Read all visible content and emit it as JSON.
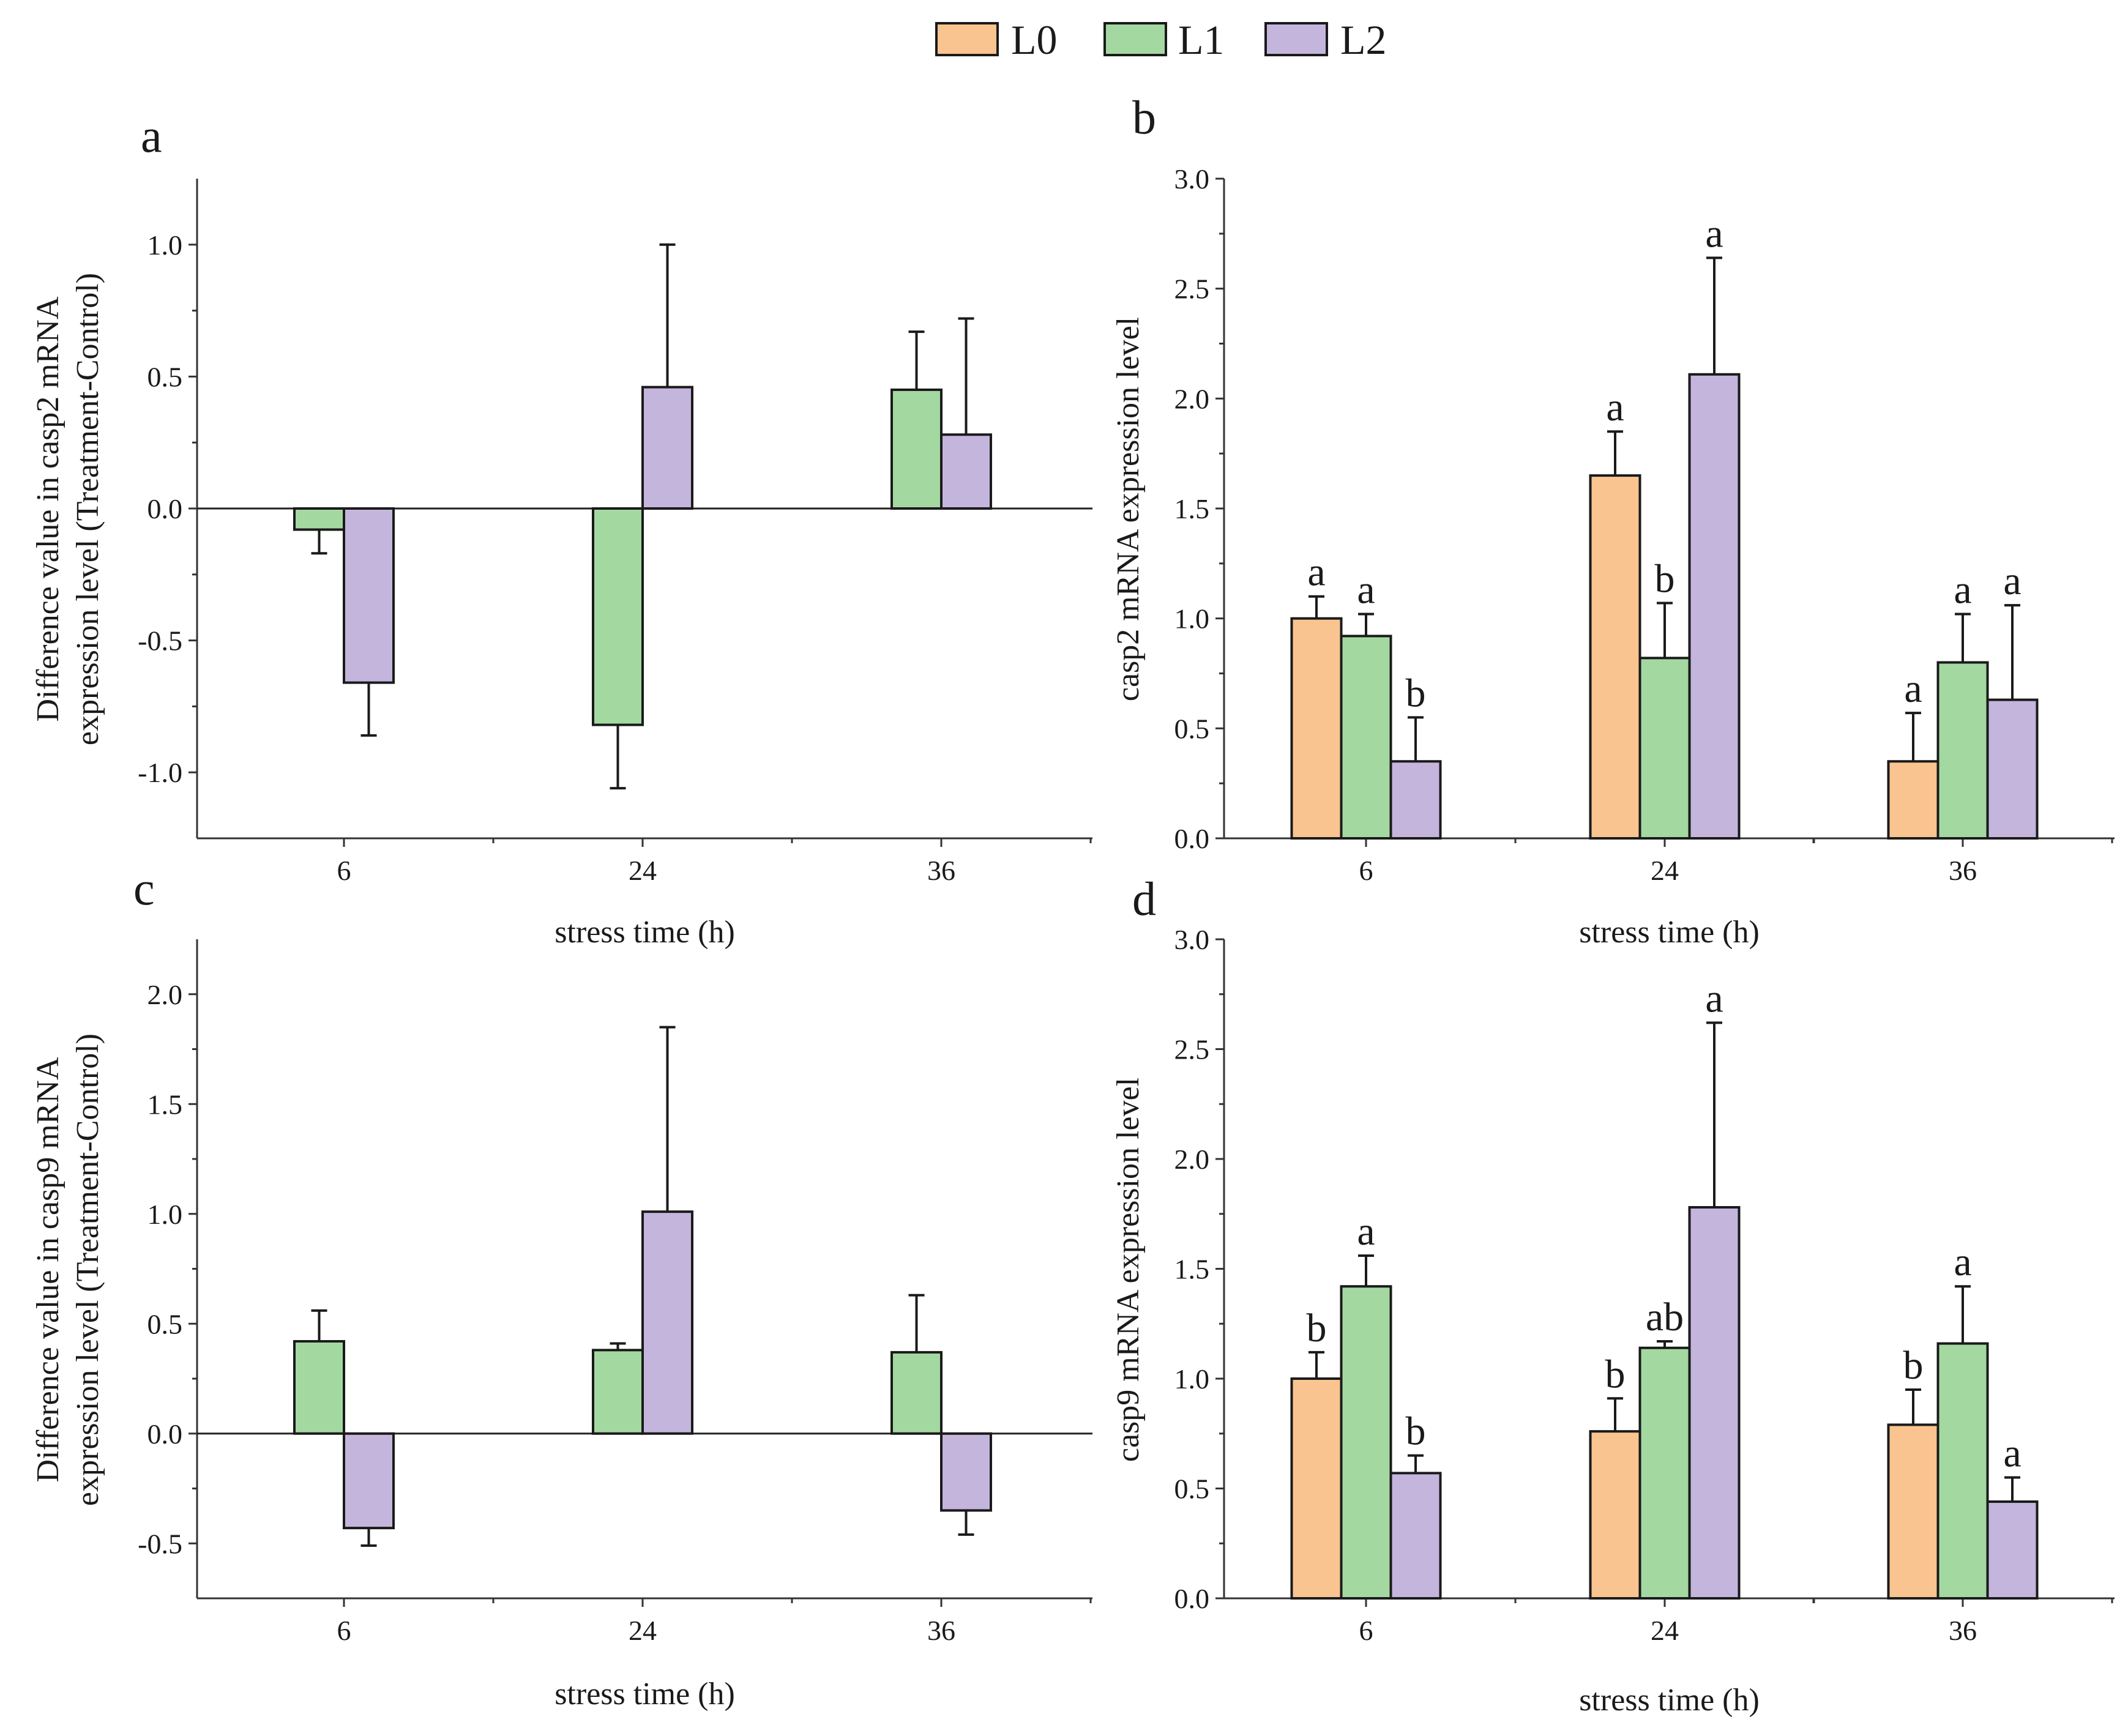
{
  "legend": [
    {
      "name": "L0",
      "color": "#f9c48f"
    },
    {
      "name": "L1",
      "color": "#a3d9a1"
    },
    {
      "name": "L2",
      "color": "#c4b5dd"
    }
  ],
  "chart_data": [
    {
      "panel": "a",
      "type": "bar",
      "categories": [
        "6",
        "24",
        "36"
      ],
      "xlabel": "stress time (h)",
      "ylabel": [
        "Difference value in casp2 mRNA",
        "expression level (Treatment-Control)"
      ],
      "ylim": [
        -1.25,
        1.25
      ],
      "yticks": [
        -1.0,
        -0.5,
        0.0,
        0.5,
        1.0
      ],
      "ytick_labels": [
        "-1.0",
        "-0.5",
        "0.0",
        "0.5",
        "1.0"
      ],
      "zero_line": true,
      "series": [
        {
          "name": "L1",
          "values": [
            -0.08,
            -0.82,
            0.45
          ],
          "errors": [
            0.09,
            0.24,
            0.22
          ]
        },
        {
          "name": "L2",
          "values": [
            -0.66,
            0.46,
            0.28
          ],
          "errors": [
            0.2,
            0.54,
            0.44
          ]
        }
      ]
    },
    {
      "panel": "b",
      "type": "bar",
      "categories": [
        "6",
        "24",
        "36"
      ],
      "xlabel": "stress time (h)",
      "ylabel": [
        "casp2 mRNA expression level"
      ],
      "ylim": [
        0,
        3.0
      ],
      "yticks": [
        0.0,
        0.5,
        1.0,
        1.5,
        2.0,
        2.5,
        3.0
      ],
      "ytick_labels": [
        "0.0",
        "0.5",
        "1.0",
        "1.5",
        "2.0",
        "2.5",
        "3.0"
      ],
      "zero_line": false,
      "series": [
        {
          "name": "L0",
          "values": [
            1.0,
            1.65,
            0.35
          ],
          "errors": [
            0.1,
            0.2,
            0.22
          ],
          "sig": [
            "a",
            "a",
            "a"
          ]
        },
        {
          "name": "L1",
          "values": [
            0.92,
            0.82,
            0.8
          ],
          "errors": [
            0.1,
            0.25,
            0.22
          ],
          "sig": [
            "a",
            "b",
            "a"
          ]
        },
        {
          "name": "L2",
          "values": [
            0.35,
            2.11,
            0.63
          ],
          "errors": [
            0.2,
            0.53,
            0.43
          ],
          "sig": [
            "b",
            "a",
            "a"
          ]
        }
      ]
    },
    {
      "panel": "c",
      "type": "bar",
      "categories": [
        "6",
        "24",
        "36"
      ],
      "xlabel": "stress time (h)",
      "ylabel": [
        "Difference value in casp9 mRNA",
        "expression level (Treatment-Control)"
      ],
      "ylim": [
        -0.75,
        2.25
      ],
      "yticks": [
        -0.5,
        0.0,
        0.5,
        1.0,
        1.5,
        2.0
      ],
      "ytick_labels": [
        "-0.5",
        "0.0",
        "0.5",
        "1.0",
        "1.5",
        "2.0"
      ],
      "zero_line": true,
      "series": [
        {
          "name": "L1",
          "values": [
            0.42,
            0.38,
            0.37
          ],
          "errors": [
            0.14,
            0.03,
            0.26
          ]
        },
        {
          "name": "L2",
          "values": [
            -0.43,
            1.01,
            -0.35
          ],
          "errors": [
            0.08,
            0.84,
            0.11
          ]
        }
      ]
    },
    {
      "panel": "d",
      "type": "bar",
      "categories": [
        "6",
        "24",
        "36"
      ],
      "xlabel": "stress time (h)",
      "ylabel": [
        "casp9 mRNA expression level"
      ],
      "ylim": [
        0,
        3.0
      ],
      "yticks": [
        0.0,
        0.5,
        1.0,
        1.5,
        2.0,
        2.5,
        3.0
      ],
      "ytick_labels": [
        "0.0",
        "0.5",
        "1.0",
        "1.5",
        "2.0",
        "2.5",
        "3.0"
      ],
      "zero_line": false,
      "series": [
        {
          "name": "L0",
          "values": [
            1.0,
            0.76,
            0.79
          ],
          "errors": [
            0.12,
            0.15,
            0.16
          ],
          "sig": [
            "b",
            "b",
            "b"
          ]
        },
        {
          "name": "L1",
          "values": [
            1.42,
            1.14,
            1.16
          ],
          "errors": [
            0.14,
            0.03,
            0.26
          ],
          "sig": [
            "a",
            "ab",
            "a"
          ]
        },
        {
          "name": "L2",
          "values": [
            0.57,
            1.78,
            0.44
          ],
          "errors": [
            0.08,
            0.84,
            0.11
          ],
          "sig": [
            "b",
            "a",
            "a"
          ]
        }
      ]
    }
  ]
}
